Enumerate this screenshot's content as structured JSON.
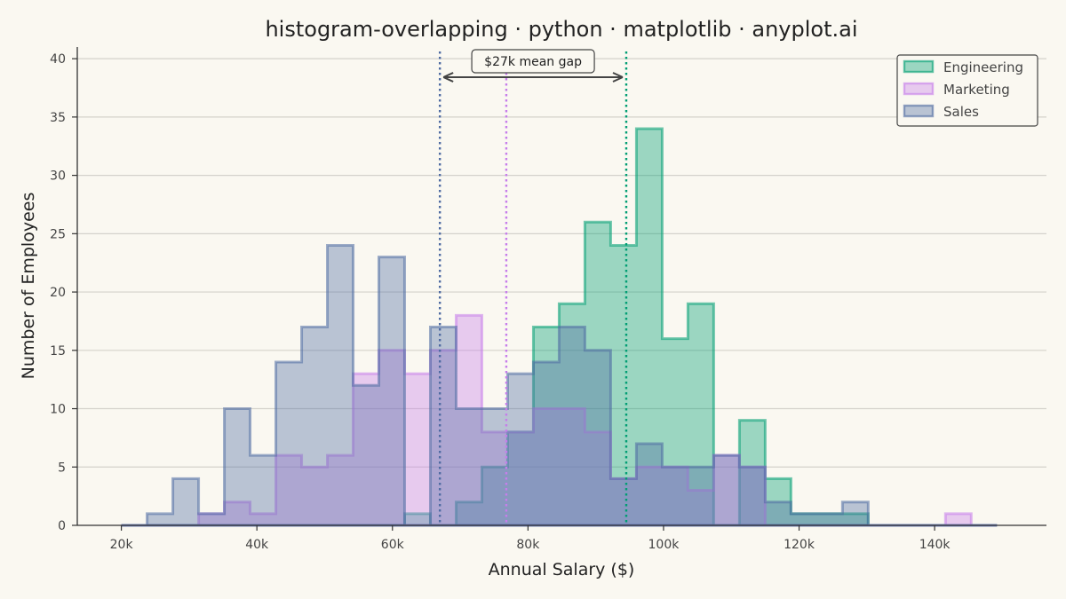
{
  "chart_data": {
    "type": "histogram",
    "title": "histogram-overlapping · python · matplotlib · anyplot.ai",
    "xlabel": "Annual Salary ($)",
    "ylabel": "Number of Employees",
    "xlim": [
      13500,
      156500
    ],
    "ylim": [
      0,
      41
    ],
    "x_ticks": [
      20000,
      40000,
      60000,
      80000,
      100000,
      120000,
      140000
    ],
    "x_tick_labels": [
      "20k",
      "40k",
      "60k",
      "80k",
      "100k",
      "120k",
      "140k"
    ],
    "y_ticks": [
      0,
      5,
      10,
      15,
      20,
      25,
      30,
      35,
      40
    ],
    "y_tick_labels": [
      "0",
      "5",
      "10",
      "15",
      "20",
      "25",
      "30",
      "35",
      "40"
    ],
    "grid": "horizontal",
    "legend_position": "top-right",
    "bin_edges": [
      20000,
      23800,
      27600,
      31400,
      35200,
      39000,
      42800,
      46600,
      50400,
      54200,
      58000,
      61800,
      65600,
      69400,
      73200,
      77000,
      80800,
      84600,
      88400,
      92200,
      96000,
      99800,
      103600,
      107400,
      111200,
      115000,
      118800,
      122600,
      126400,
      130200,
      134000,
      137800,
      141600,
      145400,
      149200
    ],
    "series": [
      {
        "name": "Engineering",
        "color": "#009E73",
        "mean": 94500,
        "counts": [
          0,
          0,
          0,
          0,
          0,
          0,
          0,
          0,
          0,
          0,
          0,
          1,
          0,
          2,
          5,
          8,
          17,
          19,
          26,
          24,
          34,
          16,
          19,
          0,
          9,
          4,
          1,
          1,
          1,
          0,
          0,
          0,
          0,
          0
        ]
      },
      {
        "name": "Marketing",
        "color": "#C77DEB",
        "mean": 76800,
        "counts": [
          0,
          0,
          0,
          1,
          2,
          1,
          6,
          5,
          6,
          13,
          15,
          13,
          15,
          18,
          8,
          8,
          10,
          10,
          8,
          4,
          5,
          5,
          3,
          6,
          5,
          0,
          0,
          0,
          0,
          0,
          0,
          0,
          1,
          0
        ]
      },
      {
        "name": "Sales",
        "color": "#4F6BA2",
        "mean": 67000,
        "counts": [
          0,
          1,
          4,
          1,
          10,
          6,
          14,
          17,
          24,
          12,
          23,
          0,
          17,
          10,
          10,
          13,
          14,
          17,
          15,
          4,
          7,
          5,
          5,
          6,
          5,
          2,
          1,
          1,
          2,
          0,
          0,
          0,
          0,
          0
        ]
      }
    ],
    "annotation": {
      "text": "$27k mean gap",
      "from": 67000,
      "to": 94500
    }
  }
}
